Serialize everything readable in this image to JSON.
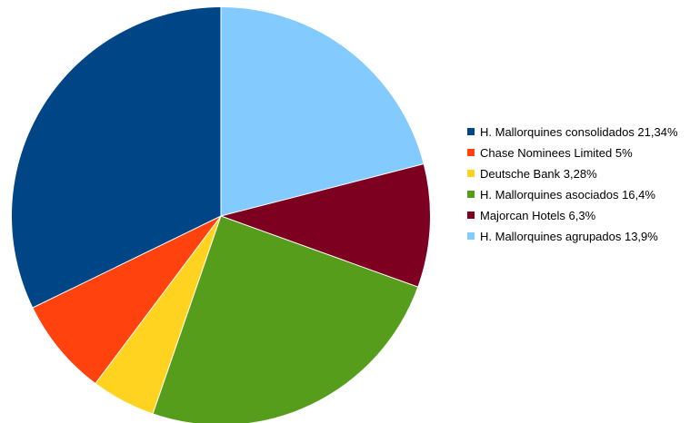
{
  "chart_data": {
    "type": "pie",
    "start_angle_deg": 0,
    "direction": "clockwise",
    "legend_position": "right",
    "slices": [
      {
        "label": "H. Mallorquines agrupados 13,9%",
        "value": 13.9,
        "color": "#83CAFF"
      },
      {
        "label": "Majorcan Hotels 6,3%",
        "value": 6.3,
        "color": "#7E0021"
      },
      {
        "label": "H. Mallorquines asociados 16,4%",
        "value": 16.4,
        "color": "#579D1C"
      },
      {
        "label": "Deutsche Bank 3,28%",
        "value": 3.28,
        "color": "#FFD320"
      },
      {
        "label": "Chase Nominees Limited 5%",
        "value": 5,
        "color": "#FF420E"
      },
      {
        "label": "H. Mallorquines consolidados 21,34%",
        "value": 21.34,
        "color": "#004586"
      }
    ],
    "legend": [
      {
        "label": "H. Mallorquines consolidados 21,34%",
        "color": "#004586"
      },
      {
        "label": "Chase Nominees Limited 5%",
        "color": "#FF420E"
      },
      {
        "label": "Deutsche Bank 3,28%",
        "color": "#FFD320"
      },
      {
        "label": "H. Mallorquines asociados 16,4%",
        "color": "#579D1C"
      },
      {
        "label": "Majorcan Hotels 6,3%",
        "color": "#7E0021"
      },
      {
        "label": "H. Mallorquines agrupados 13,9%",
        "color": "#83CAFF"
      }
    ]
  }
}
